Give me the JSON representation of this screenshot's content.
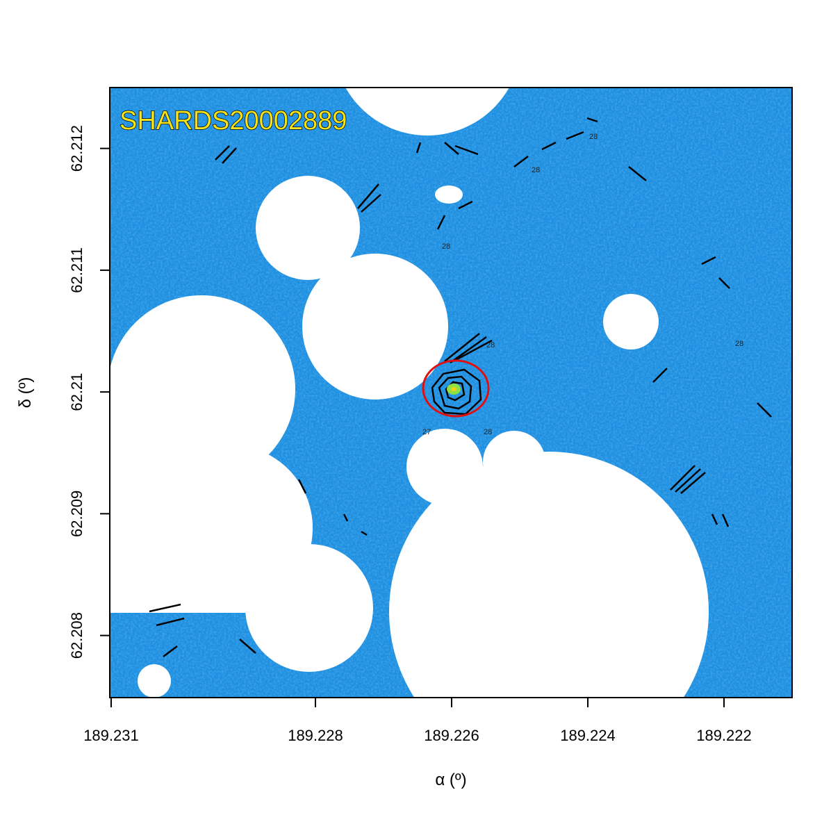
{
  "chart_data": {
    "type": "image",
    "annotation": "SHARDS20002889",
    "x_label": "α (º)",
    "y_label": "δ (º)",
    "xlim": [
      189.23102,
      189.221
    ],
    "ylim": [
      62.20749,
      62.2125
    ],
    "xticks": [
      189.231,
      189.228,
      189.226,
      189.224,
      189.222
    ],
    "yticks": [
      62.212,
      62.211,
      62.21,
      62.209,
      62.208
    ],
    "contour_labels": [
      "28",
      "28",
      "28",
      "28",
      "27",
      "28",
      "28"
    ]
  }
}
